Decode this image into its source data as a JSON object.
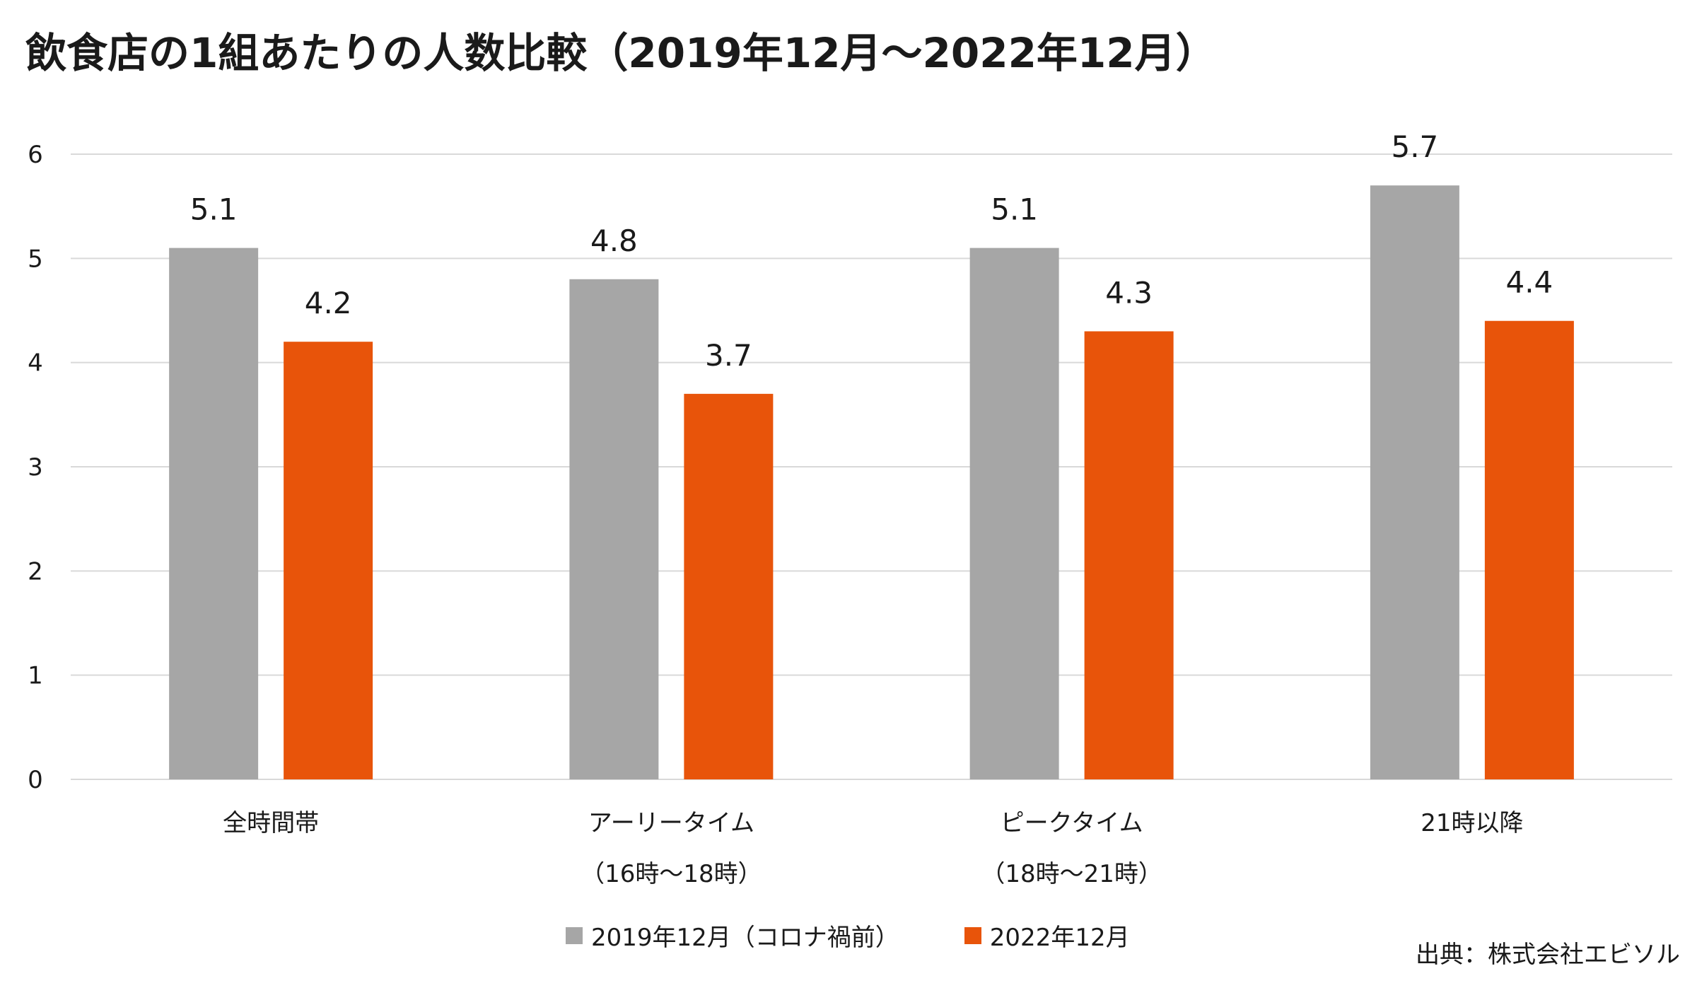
{
  "title": "飲食店の1組あたりの人数比較（2019年12月～2022年12月）",
  "source": "出典：株式会社エビソル",
  "colors": {
    "series_2019": "#a6a6a6",
    "series_2022": "#e8540a",
    "grid": "#d9d9d9"
  },
  "chart_data": {
    "type": "bar",
    "categories": [
      {
        "line1": "全時間帯",
        "line2": ""
      },
      {
        "line1": "アーリータイム",
        "line2": "（16時～18時）"
      },
      {
        "line1": "ピークタイム",
        "line2": "（18時～21時）"
      },
      {
        "line1": "21時以降",
        "line2": ""
      }
    ],
    "series": [
      {
        "name": "2019年12月（コロナ禍前）",
        "values": [
          5.1,
          4.8,
          5.1,
          5.7
        ],
        "labels": [
          "5.1",
          "4.8",
          "5.1",
          "5.7"
        ]
      },
      {
        "name": "2022年12月",
        "values": [
          4.2,
          3.7,
          4.3,
          4.4
        ],
        "labels": [
          "4.2",
          "3.7",
          "4.3",
          "4.4"
        ]
      }
    ],
    "ylim": [
      0,
      6
    ],
    "yticks": [
      "0",
      "1",
      "2",
      "3",
      "4",
      "5",
      "6"
    ],
    "grid": true,
    "legend": "bottom"
  }
}
